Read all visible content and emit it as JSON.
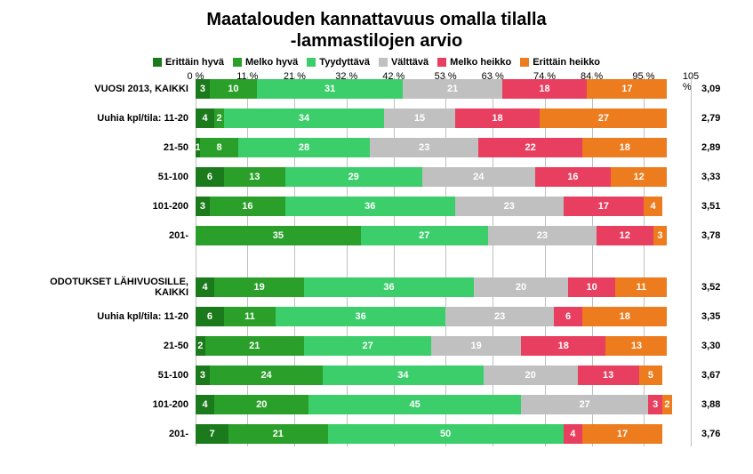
{
  "chart": {
    "title_line1": "Maatalouden kannattavuus omalla tilalla",
    "title_line2": "-lammastilojen arvio",
    "title_fontsize": 20,
    "background_color": "#ffffff",
    "grid_color": "#bfbfbf",
    "legend": [
      {
        "label": "Erittäin hyvä",
        "color": "#1b7a1b"
      },
      {
        "label": "Melko hyvä",
        "color": "#2aa02a"
      },
      {
        "label": "Tyydyttävä",
        "color": "#3bce6b"
      },
      {
        "label": "Välttävä",
        "color": "#c0c0c0"
      },
      {
        "label": "Melko heikko",
        "color": "#e83e5f"
      },
      {
        "label": "Erittäin heikko",
        "color": "#ec7c1d"
      }
    ],
    "categories": [
      "Erittäin hyvä",
      "Melko hyvä",
      "Tyydyttävä",
      "Välttävä",
      "Melko heikko",
      "Erittäin heikko"
    ],
    "colors": [
      "#1b7a1b",
      "#2aa02a",
      "#3bce6b",
      "#c0c0c0",
      "#e83e5f",
      "#ec7c1d"
    ],
    "xaxis": {
      "min": 0,
      "max": 105,
      "ticks": [
        0,
        11,
        21,
        32,
        42,
        53,
        63,
        74,
        84,
        95,
        105
      ],
      "tick_labels": [
        "0 %",
        "11 %",
        "21 %",
        "32 %",
        "42 %",
        "53 %",
        "63 %",
        "74 %",
        "84 %",
        "95 %",
        "105 %"
      ],
      "tick_fontsize": 11
    },
    "groups": [
      {
        "rows": [
          {
            "label": "VUOSI 2013, KAIKKI",
            "values": [
              3,
              10,
              31,
              21,
              18,
              17
            ],
            "score": "3,09"
          },
          {
            "label": "Uuhia kpl/tila: 11-20",
            "values": [
              4,
              2,
              34,
              15,
              18,
              27
            ],
            "score": "2,79"
          },
          {
            "label": "21-50",
            "values": [
              1,
              8,
              28,
              23,
              22,
              18
            ],
            "score": "2,89"
          },
          {
            "label": "51-100",
            "values": [
              6,
              13,
              29,
              24,
              16,
              12
            ],
            "score": "3,33"
          },
          {
            "label": "101-200",
            "values": [
              3,
              16,
              36,
              23,
              17,
              4
            ],
            "score": "3,51"
          },
          {
            "label": "201-",
            "values": [
              0,
              35,
              27,
              23,
              12,
              3
            ],
            "score": "3,78"
          }
        ]
      },
      {
        "rows": [
          {
            "label": "ODOTUKSET LÄHIVUOSILLE, KAIKKI",
            "values": [
              4,
              19,
              36,
              20,
              10,
              11
            ],
            "score": "3,52"
          },
          {
            "label": "Uuhia kpl/tila: 11-20",
            "values": [
              6,
              11,
              36,
              23,
              6,
              18
            ],
            "score": "3,35"
          },
          {
            "label": "21-50",
            "values": [
              2,
              21,
              27,
              19,
              18,
              13
            ],
            "score": "3,30"
          },
          {
            "label": "51-100",
            "values": [
              3,
              24,
              34,
              20,
              13,
              5
            ],
            "score": "3,67"
          },
          {
            "label": "101-200",
            "values": [
              4,
              20,
              45,
              27,
              3,
              2
            ],
            "score": "3,88"
          },
          {
            "label": "201-",
            "values": [
              7,
              21,
              50,
              0,
              4,
              17
            ],
            "score": "3,76"
          }
        ]
      }
    ]
  }
}
